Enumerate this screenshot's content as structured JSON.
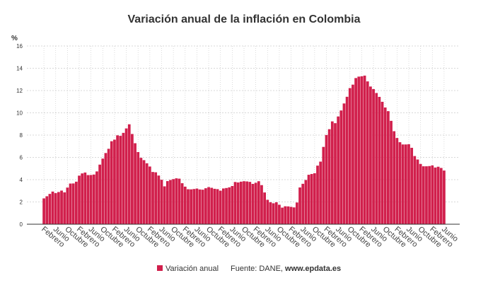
{
  "chart_data": {
    "type": "bar",
    "title": "Variación anual de la inflación en Colombia",
    "y_unit": "%",
    "series": [
      {
        "name": "Variación anual",
        "color": "#d11f4c",
        "values": [
          2.32,
          2.51,
          2.72,
          2.93,
          2.79,
          2.89,
          3.02,
          2.86,
          3.29,
          3.65,
          3.66,
          3.82,
          4.36,
          4.56,
          4.64,
          4.41,
          4.42,
          4.46,
          4.74,
          5.35,
          5.89,
          6.39,
          6.77,
          7.45,
          7.59,
          7.98,
          7.93,
          8.2,
          8.6,
          8.97,
          8.1,
          7.27,
          6.48,
          5.96,
          5.75,
          5.47,
          5.18,
          4.69,
          4.66,
          4.37,
          3.99,
          3.4,
          3.87,
          3.97,
          4.05,
          4.12,
          4.09,
          3.68,
          3.37,
          3.14,
          3.13,
          3.16,
          3.2,
          3.12,
          3.1,
          3.23,
          3.33,
          3.27,
          3.18,
          3.15,
          3.01,
          3.21,
          3.25,
          3.31,
          3.43,
          3.79,
          3.75,
          3.82,
          3.86,
          3.84,
          3.8,
          3.62,
          3.72,
          3.86,
          3.51,
          2.85,
          2.19,
          1.97,
          1.88,
          1.97,
          1.75,
          1.49,
          1.61,
          1.6,
          1.56,
          1.51,
          1.95,
          3.3,
          3.63,
          3.97,
          4.44,
          4.51,
          4.58,
          5.26,
          5.62,
          6.94,
          8.01,
          8.53,
          9.23,
          9.07,
          9.67,
          10.21,
          10.84,
          11.44,
          12.22,
          12.53,
          13.12,
          13.25,
          13.28,
          13.34,
          12.82,
          12.36,
          12.13,
          11.78,
          11.43,
          10.99,
          10.48,
          10.15,
          9.28,
          8.35,
          7.74,
          7.36,
          7.16,
          7.16,
          7.18,
          6.86,
          6.12,
          5.81,
          5.41,
          5.2,
          5.2,
          5.22,
          5.28,
          5.09,
          5.16,
          5.05,
          4.82
        ]
      }
    ],
    "categories": [
      "Febrero",
      null,
      null,
      null,
      "Junio",
      null,
      null,
      null,
      "Octubre",
      null,
      null,
      null,
      "Febrero",
      null,
      null,
      null,
      "Junio",
      null,
      null,
      null,
      "Octubre",
      null,
      null,
      null,
      "Febrero",
      null,
      null,
      null,
      "Junio",
      null,
      null,
      null,
      "Octubre",
      null,
      null,
      null,
      "Febrero",
      null,
      null,
      null,
      "Junio",
      null,
      null,
      null,
      "Octubre",
      null,
      null,
      null,
      "Febrero",
      null,
      null,
      null,
      "Junio",
      null,
      null,
      null,
      "Octubre",
      null,
      null,
      null,
      "Febrero",
      null,
      null,
      null,
      "Junio",
      null,
      null,
      null,
      "Octubre",
      null,
      null,
      null,
      "Febrero",
      null,
      null,
      null,
      "Junio",
      null,
      null,
      null,
      "Octubre",
      null,
      null,
      null,
      "Febrero",
      null,
      null,
      null,
      "Junio",
      null,
      null,
      null,
      "Octubre",
      null,
      null,
      null,
      "Febrero",
      null,
      null,
      null,
      "Junio",
      null,
      null,
      null,
      "Octubre",
      null,
      null,
      null,
      "Febrero",
      null,
      null,
      null,
      "Junio",
      null,
      null,
      null,
      "Octubre",
      null,
      null,
      null,
      "Febrero",
      null,
      null,
      null,
      "Junio",
      null,
      null,
      null,
      "Octubre",
      null,
      null,
      null,
      "Febrero",
      null,
      null,
      null,
      "Junio"
    ],
    "ylim": [
      0,
      16
    ],
    "yticks": [
      0,
      2,
      4,
      6,
      8,
      10,
      12,
      14,
      16
    ],
    "grid": true,
    "source_label": "Fuente: DANE,",
    "source_site": "www.epdata.es"
  }
}
